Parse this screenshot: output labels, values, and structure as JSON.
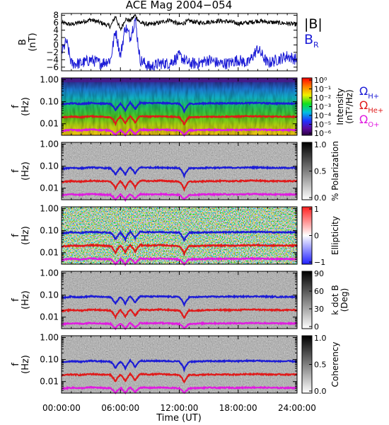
{
  "title": "ACE Mag 2004−054",
  "x_axis": {
    "label": "Time (UT)",
    "ticks": [
      "00:00:00",
      "06:00:00",
      "12:00:00",
      "18:00:00",
      "24:00:00"
    ]
  },
  "panels": [
    {
      "id": "b-field",
      "ylabel": "B",
      "yunit": "(nT)",
      "yticks": [
        "8",
        "6",
        "4",
        "2",
        "0",
        "−2",
        "−4",
        "−6"
      ],
      "legend": [
        {
          "text": "|B|",
          "sub": "",
          "color": "#000000"
        },
        {
          "text": "B",
          "sub": "R",
          "color": "#1c1cd6"
        }
      ]
    },
    {
      "id": "intensity",
      "ylabel": "f",
      "yunit": "(Hz)",
      "yticks": [
        "1.00",
        "0.10",
        "0.01"
      ],
      "colorbar": {
        "label": "Intensity",
        "unit": "(nT²/Hz)",
        "ticks": [
          "10⁰",
          "10⁻¹",
          "10⁻²",
          "10⁻³",
          "10⁻⁴",
          "10⁻⁵",
          "10⁻⁶"
        ]
      },
      "legend": [
        {
          "text": "Ω",
          "sub": "H+",
          "color": "#1c1cd6"
        },
        {
          "text": "Ω",
          "sub": "He+",
          "color": "#e01a1a"
        },
        {
          "text": "Ω",
          "sub": "O+",
          "color": "#e01ae0"
        }
      ]
    },
    {
      "id": "polarization",
      "ylabel": "f",
      "yunit": "(Hz)",
      "yticks": [
        "1.00",
        "0.10",
        "0.01"
      ],
      "colorbar": {
        "label": "% Polarization",
        "unit": "",
        "ticks": [
          "1.0",
          "0.5",
          "0.0"
        ]
      }
    },
    {
      "id": "ellipticity",
      "ylabel": "f",
      "yunit": "(Hz)",
      "yticks": [
        "1.00",
        "0.10",
        "0.01"
      ],
      "colorbar": {
        "label": "Ellipticity",
        "unit": "",
        "ticks": [
          "1",
          "0",
          "−1"
        ]
      }
    },
    {
      "id": "k-dot-b",
      "ylabel": "f",
      "yunit": "(Hz)",
      "yticks": [
        "1.00",
        "0.10",
        "0.01"
      ],
      "colorbar": {
        "label": "k dot B",
        "unit": "(Deg)",
        "ticks": [
          "90",
          "60",
          "30",
          "0"
        ]
      }
    },
    {
      "id": "coherency",
      "ylabel": "f",
      "yunit": "(Hz)",
      "yticks": [
        "1.00",
        "0.10",
        "0.01"
      ],
      "colorbar": {
        "label": "Coherency",
        "unit": "",
        "ticks": [
          "1.0",
          "0.5",
          "0.0"
        ]
      }
    }
  ],
  "colors": {
    "h_plus": "#1c1cd6",
    "he_plus": "#e01a1a",
    "o_plus": "#e01ae0",
    "b_mag": "#000000",
    "b_r": "#1c1cd6"
  },
  "chart_data": {
    "type": "line",
    "x_range_hours": [
      0,
      24
    ],
    "x_ticks": [
      "00:00:00",
      "06:00:00",
      "12:00:00",
      "18:00:00",
      "24:00:00"
    ],
    "b_panel": {
      "ylim": [
        -7,
        8.5
      ],
      "series": [
        {
          "name": "|B|",
          "x": [
            0,
            1,
            2,
            3,
            4,
            5,
            5.5,
            6,
            6.5,
            7,
            7.5,
            8,
            9,
            10,
            11,
            12,
            13,
            14,
            15,
            16,
            17,
            18,
            19,
            20,
            21,
            22,
            23,
            24
          ],
          "y": [
            6.0,
            5.5,
            6.2,
            6.8,
            6.0,
            5.0,
            7.8,
            4.0,
            7.0,
            6.5,
            8.0,
            6.0,
            5.5,
            6.0,
            6.8,
            5.5,
            6.5,
            6.0,
            6.2,
            6.5,
            6.3,
            5.8,
            6.0,
            6.5,
            6.2,
            6.0,
            5.8,
            5.5
          ]
        },
        {
          "name": "B_R",
          "x": [
            0,
            0.5,
            1,
            2,
            3,
            4,
            5,
            5.5,
            6,
            6.5,
            7,
            7.5,
            8,
            9,
            10,
            11,
            12,
            13,
            14,
            15,
            16,
            17,
            18,
            19,
            20,
            21,
            22,
            23,
            24
          ],
          "y": [
            -2,
            1,
            -5,
            -5,
            -4,
            -5,
            -4,
            4,
            -3,
            5,
            2,
            7,
            -4,
            -6,
            -5,
            -5,
            -3,
            -5,
            -5,
            -4,
            -5,
            -5,
            -4,
            -5,
            -1,
            -5,
            -4,
            -3,
            -4
          ]
        }
      ]
    },
    "spectrogram_lines": {
      "ylim_hz": [
        0.003,
        1.2
      ],
      "series": [
        {
          "name": "H+",
          "x": [
            0,
            1,
            2,
            3,
            4,
            5,
            5.5,
            6,
            6.5,
            7,
            7.5,
            8,
            9,
            10,
            11,
            12,
            12.5,
            13,
            14,
            15,
            16,
            17,
            18,
            19,
            20,
            21,
            22,
            23,
            24
          ],
          "y": [
            0.075,
            0.085,
            0.08,
            0.088,
            0.083,
            0.08,
            0.04,
            0.082,
            0.04,
            0.09,
            0.045,
            0.088,
            0.086,
            0.087,
            0.085,
            0.082,
            0.035,
            0.08,
            0.082,
            0.085,
            0.084,
            0.086,
            0.085,
            0.087,
            0.088,
            0.085,
            0.083,
            0.084,
            0.083
          ]
        },
        {
          "name": "He+",
          "x": [
            0,
            1,
            2,
            3,
            4,
            5,
            5.5,
            6,
            6.5,
            7,
            7.5,
            8,
            9,
            10,
            11,
            12,
            12.5,
            13,
            14,
            15,
            16,
            17,
            18,
            19,
            20,
            21,
            22,
            23,
            24
          ],
          "y": [
            0.019,
            0.021,
            0.02,
            0.022,
            0.021,
            0.02,
            0.01,
            0.021,
            0.01,
            0.022,
            0.011,
            0.022,
            0.021,
            0.022,
            0.021,
            0.02,
            0.009,
            0.02,
            0.02,
            0.021,
            0.021,
            0.021,
            0.021,
            0.022,
            0.022,
            0.021,
            0.021,
            0.021,
            0.021
          ]
        },
        {
          "name": "O+",
          "x": [
            0,
            1,
            2,
            3,
            4,
            5,
            5.5,
            6,
            6.5,
            7,
            7.5,
            8,
            9,
            10,
            11,
            12,
            12.5,
            13,
            14,
            15,
            16,
            17,
            18,
            19,
            20,
            21,
            22,
            23,
            24
          ],
          "y": [
            0.0048,
            0.0053,
            0.005,
            0.0055,
            0.0052,
            0.005,
            0.003,
            0.0052,
            0.003,
            0.0055,
            0.0032,
            0.0054,
            0.0052,
            0.0054,
            0.0052,
            0.005,
            0.003,
            0.005,
            0.0051,
            0.0053,
            0.0052,
            0.0053,
            0.0052,
            0.0054,
            0.0054,
            0.0053,
            0.0052,
            0.0052,
            0.0052
          ]
        }
      ]
    }
  }
}
